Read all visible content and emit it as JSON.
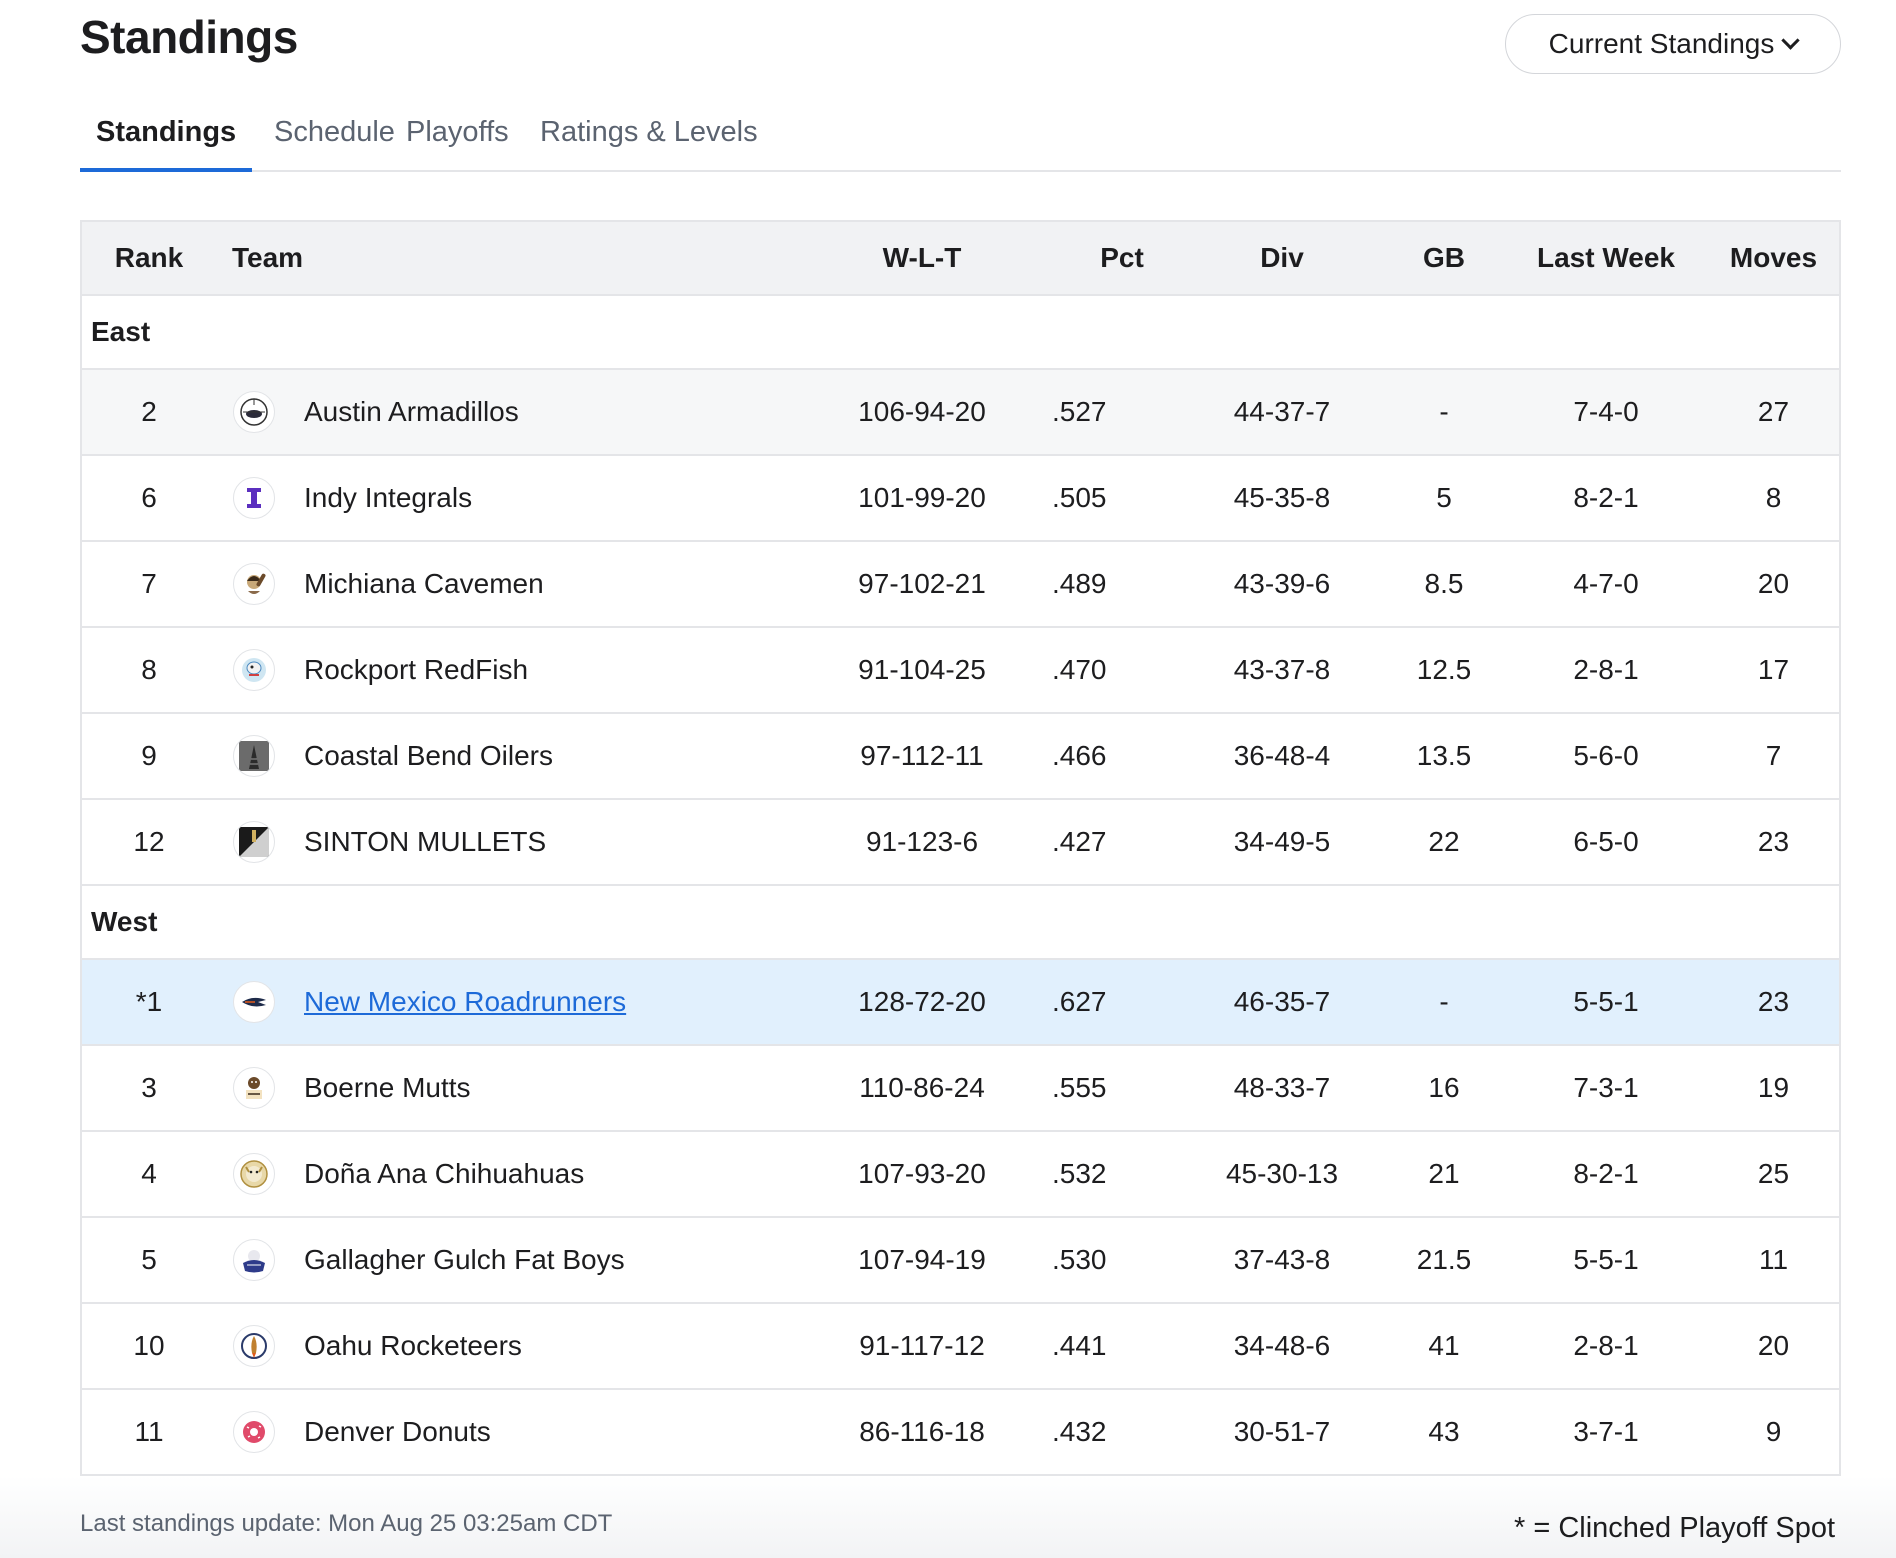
{
  "header": {
    "title": "Standings",
    "dropdown_label": "Current Standings"
  },
  "tabs": [
    {
      "label": "Standings",
      "active": true
    },
    {
      "label": "Schedule",
      "active": false
    },
    {
      "label": "Playoffs",
      "active": false
    },
    {
      "label": "Ratings & Levels",
      "active": false
    }
  ],
  "table": {
    "columns": {
      "rank": "Rank",
      "team": "Team",
      "wlt": "W-L-T",
      "pct": "Pct",
      "div": "Div",
      "gb": "GB",
      "last_week": "Last Week",
      "moves": "Moves"
    },
    "divisions": [
      {
        "name": "East",
        "rows": [
          {
            "rank": "2",
            "team": "Austin Armadillos",
            "wlt": "106-94-20",
            "pct": ".527",
            "div": "44-37-7",
            "gb": "-",
            "last_week": "7-4-0",
            "moves": "27",
            "logo": "armadillo-logo-icon"
          },
          {
            "rank": "6",
            "team": "Indy Integrals",
            "wlt": "101-99-20",
            "pct": ".505",
            "div": "45-35-8",
            "gb": "5",
            "last_week": "8-2-1",
            "moves": "8",
            "logo": "integral-logo-icon"
          },
          {
            "rank": "7",
            "team": "Michiana Cavemen",
            "wlt": "97-102-21",
            "pct": ".489",
            "div": "43-39-6",
            "gb": "8.5",
            "last_week": "4-7-0",
            "moves": "20",
            "logo": "caveman-logo-icon"
          },
          {
            "rank": "8",
            "team": "Rockport RedFish",
            "wlt": "91-104-25",
            "pct": ".470",
            "div": "43-37-8",
            "gb": "12.5",
            "last_week": "2-8-1",
            "moves": "17",
            "logo": "redfish-logo-icon"
          },
          {
            "rank": "9",
            "team": "Coastal Bend Oilers",
            "wlt": "97-112-11",
            "pct": ".466",
            "div": "36-48-4",
            "gb": "13.5",
            "last_week": "5-6-0",
            "moves": "7",
            "logo": "oiler-logo-icon"
          },
          {
            "rank": "12",
            "team": "SINTON MULLETS",
            "wlt": "91-123-6",
            "pct": ".427",
            "div": "34-49-5",
            "gb": "22",
            "last_week": "6-5-0",
            "moves": "23",
            "logo": "mullet-logo-icon"
          }
        ]
      },
      {
        "name": "West",
        "rows": [
          {
            "rank": "*1",
            "team": "New Mexico Roadrunners",
            "wlt": "128-72-20",
            "pct": ".627",
            "div": "46-35-7",
            "gb": "-",
            "last_week": "5-5-1",
            "moves": "23",
            "logo": "roadrunner-logo-icon",
            "highlighted": true,
            "link": true
          },
          {
            "rank": "3",
            "team": "Boerne Mutts",
            "wlt": "110-86-24",
            "pct": ".555",
            "div": "48-33-7",
            "gb": "16",
            "last_week": "7-3-1",
            "moves": "19",
            "logo": "mutt-logo-icon"
          },
          {
            "rank": "4",
            "team": "Doña Ana Chihuahuas",
            "wlt": "107-93-20",
            "pct": ".532",
            "div": "45-30-13",
            "gb": "21",
            "last_week": "8-2-1",
            "moves": "25",
            "logo": "chihuahua-logo-icon"
          },
          {
            "rank": "5",
            "team": "Gallagher Gulch Fat Boys",
            "wlt": "107-94-19",
            "pct": ".530",
            "div": "37-43-8",
            "gb": "21.5",
            "last_week": "5-5-1",
            "moves": "11",
            "logo": "fatboy-logo-icon"
          },
          {
            "rank": "10",
            "team": "Oahu Rocketeers",
            "wlt": "91-117-12",
            "pct": ".441",
            "div": "34-48-6",
            "gb": "41",
            "last_week": "2-8-1",
            "moves": "20",
            "logo": "rocket-logo-icon"
          },
          {
            "rank": "11",
            "team": "Denver Donuts",
            "wlt": "86-116-18",
            "pct": ".432",
            "div": "30-51-7",
            "gb": "43",
            "last_week": "3-7-1",
            "moves": "9",
            "logo": "donut-logo-icon"
          }
        ]
      }
    ]
  },
  "footer": {
    "last_update": "Last standings update: Mon Aug 25 03:25am CDT",
    "legend": "* = Clinched Playoff Spot"
  },
  "colors": {
    "accent": "#1d6ad8",
    "highlight_row": "#e1f0fd",
    "header_bg": "#f1f2f4",
    "border": "#e4e5e8"
  }
}
